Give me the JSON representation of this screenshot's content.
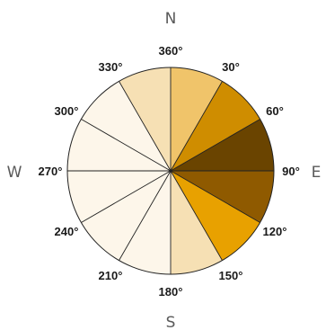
{
  "cardinals": {
    "north": "N",
    "east": "E",
    "south": "S",
    "west": "W"
  },
  "bearings": [
    {
      "label": "360°",
      "angle": 0
    },
    {
      "label": "30°",
      "angle": 30
    },
    {
      "label": "60°",
      "angle": 60
    },
    {
      "label": "90°",
      "angle": 90
    },
    {
      "label": "120°",
      "angle": 120
    },
    {
      "label": "150°",
      "angle": 150
    },
    {
      "label": "180°",
      "angle": 180
    },
    {
      "label": "210°",
      "angle": 210
    },
    {
      "label": "240°",
      "angle": 240
    },
    {
      "label": "270°",
      "angle": 270
    },
    {
      "label": "300°",
      "angle": 300
    },
    {
      "label": "330°",
      "angle": 330
    }
  ],
  "sectors": [
    {
      "from": 0,
      "to": 30,
      "color": "#f0c46a"
    },
    {
      "from": 30,
      "to": 60,
      "color": "#cf8d00"
    },
    {
      "from": 60,
      "to": 90,
      "color": "#6a4400"
    },
    {
      "from": 90,
      "to": 120,
      "color": "#8f5a00"
    },
    {
      "from": 120,
      "to": 150,
      "color": "#e8a100"
    },
    {
      "from": 150,
      "to": 180,
      "color": "#f6e0b4"
    },
    {
      "from": 180,
      "to": 210,
      "color": "#fdf6ea"
    },
    {
      "from": 210,
      "to": 240,
      "color": "#fdf6ea"
    },
    {
      "from": 240,
      "to": 270,
      "color": "#fdf6ea"
    },
    {
      "from": 270,
      "to": 300,
      "color": "#fdf6ea"
    },
    {
      "from": 300,
      "to": 330,
      "color": "#fdf6ea"
    },
    {
      "from": 330,
      "to": 360,
      "color": "#f6e0b4"
    }
  ]
}
